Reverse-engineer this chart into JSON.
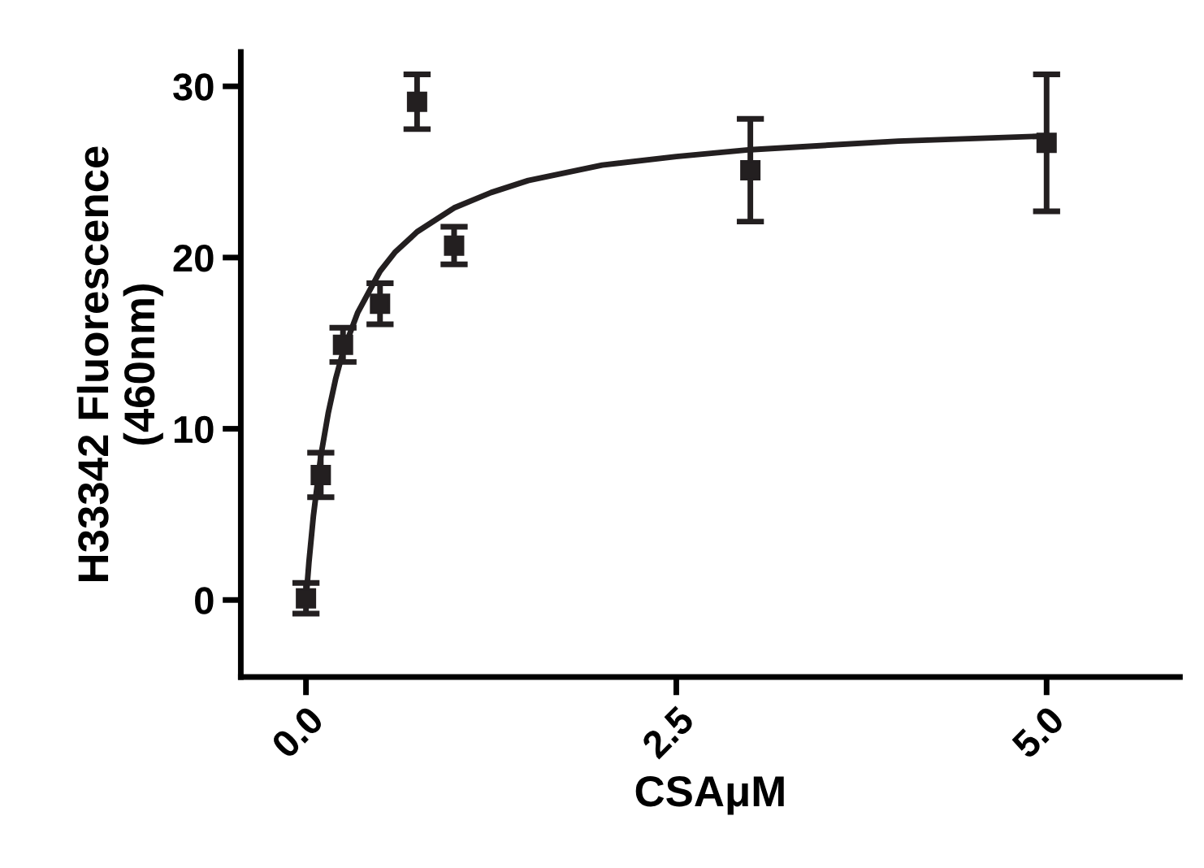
{
  "chart_data": {
    "type": "scatter",
    "xlabel": "CSAμM",
    "ylabel": "H33342 Fluorescence\n(460nm)",
    "xlim": [
      -0.44,
      5.9
    ],
    "ylim": [
      -4.5,
      32
    ],
    "xticks": [
      {
        "value": 0,
        "label": "0.0"
      },
      {
        "value": 2.5,
        "label": "2.5"
      },
      {
        "value": 5,
        "label": "5.0"
      }
    ],
    "yticks": [
      0,
      10,
      20,
      30
    ],
    "grid": false,
    "legend": false,
    "marker": "square",
    "series": [
      {
        "color": "#231f20",
        "x": [
          0,
          0.1,
          0.25,
          0.5,
          0.75,
          1,
          3,
          5
        ],
        "values": [
          0.1,
          7.3,
          14.9,
          17.3,
          29.1,
          20.7,
          25.1,
          26.7
        ],
        "errors": [
          0.9,
          1.3,
          1.0,
          1.2,
          1.6,
          1.1,
          3,
          4
        ]
      },
      {
        "type": "line",
        "color": "#231f20",
        "line_style": "solid",
        "marker": "none",
        "x": [
          0,
          0.02,
          0.05,
          0.1,
          0.15,
          0.2,
          0.25,
          0.35,
          0.5,
          0.6,
          0.75,
          1,
          1.25,
          1.5,
          2,
          2.5,
          3,
          4,
          5
        ],
        "values": [
          0,
          2.2,
          4.9,
          8.4,
          10.9,
          12.9,
          14.5,
          16.8,
          19.2,
          20.3,
          21.5,
          22.9,
          23.8,
          24.5,
          25.4,
          25.9,
          26.3,
          26.8,
          27.1
        ]
      }
    ]
  }
}
